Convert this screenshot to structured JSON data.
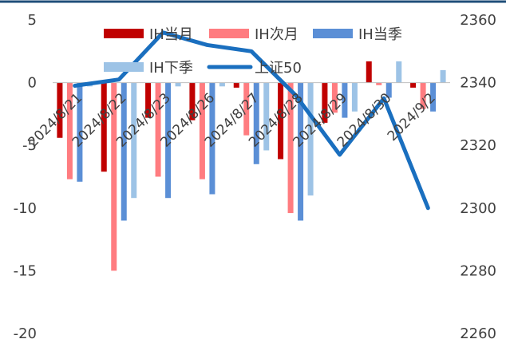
{
  "chart_data": {
    "type": "bar",
    "categories": [
      "2024/8/21",
      "2024/8/22",
      "2024/8/23",
      "2024/8/26",
      "2024/8/27",
      "2024/8/28",
      "2024/8/29",
      "2024/8/30",
      "2024/9/2"
    ],
    "series": [
      {
        "name": "IH当月",
        "type": "bar",
        "axis": "left",
        "color": "#c00000",
        "values": [
          -4.4,
          -7.1,
          -2.8,
          -3.0,
          -0.4,
          -6.1,
          -3.2,
          1.7,
          -0.4
        ]
      },
      {
        "name": "IH次月",
        "type": "bar",
        "axis": "left",
        "color": "#ff7c80",
        "values": [
          -7.7,
          -15.0,
          -7.5,
          -7.7,
          -4.2,
          -10.4,
          -2.4,
          -0.2,
          -2.1
        ]
      },
      {
        "name": "IH当季",
        "type": "bar",
        "axis": "left",
        "color": "#5b8fd6",
        "values": [
          -7.9,
          -11.0,
          -9.2,
          -8.9,
          -6.5,
          -11.0,
          -2.8,
          -1.2,
          -2.3
        ]
      },
      {
        "name": "IH下季",
        "type": "bar",
        "axis": "left",
        "color": "#9dc3e6",
        "values": [
          -0.3,
          -9.2,
          -0.3,
          -0.3,
          -5.4,
          -9.0,
          -2.3,
          1.7,
          1.0
        ]
      },
      {
        "name": "上证50",
        "type": "line",
        "axis": "right",
        "color": "#1a6fbf",
        "values": [
          2339,
          2341,
          2356,
          2352,
          2350,
          2336,
          2317,
          2335,
          2300
        ]
      }
    ],
    "y_left": {
      "ticks": [
        "5",
        "0",
        "-5",
        "-10",
        "-15",
        "-20"
      ],
      "range": [
        -20,
        5
      ]
    },
    "y_right": {
      "ticks": [
        "2360",
        "2340",
        "2320",
        "2300",
        "2280",
        "2260"
      ],
      "range": [
        2260,
        2360
      ]
    },
    "legend_placement": "top-center",
    "grid": false
  }
}
